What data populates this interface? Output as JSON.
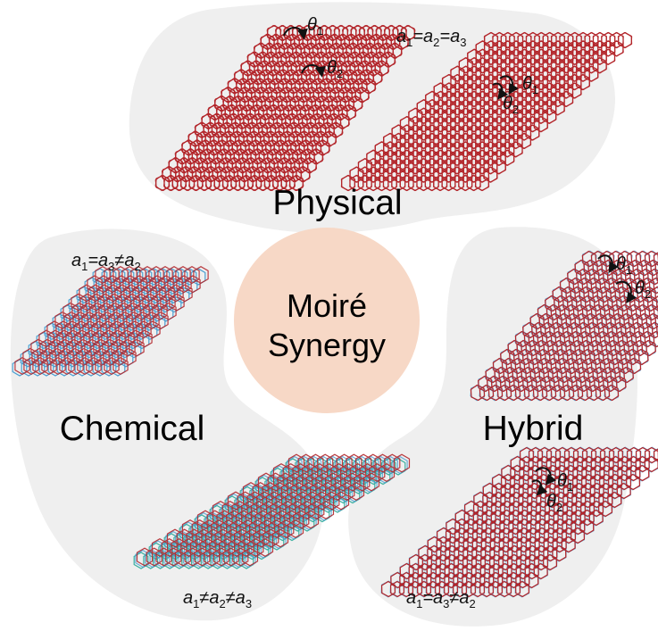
{
  "center": {
    "line1": "Moiré",
    "line2": "Synergy"
  },
  "regions": {
    "physical": {
      "label": "Physical",
      "lattice_relation": [
        "a",
        "1",
        "=a",
        "2",
        "=a",
        "3"
      ],
      "angles": [
        "θ",
        "1",
        "θ",
        "2"
      ]
    },
    "chemical": {
      "label": "Chemical",
      "lattice_relation_top": [
        "a",
        "1",
        "=a",
        "3",
        "≠a",
        "2"
      ],
      "lattice_relation_bottom": [
        "a",
        "1",
        "≠a",
        "2",
        "≠a",
        "3"
      ]
    },
    "hybrid": {
      "label": "Hybrid",
      "lattice_relation": [
        "a",
        "1",
        "=a",
        "3",
        "≠a",
        "2"
      ],
      "angles": [
        "θ",
        "1",
        "θ",
        "2"
      ]
    }
  },
  "colors": {
    "region_fill": "#efefef",
    "center_fill": "#f7d8c6",
    "lattice_red": "#b3262b",
    "lattice_blue": "#4a9fd1",
    "lattice_green": "#3bb0a0"
  }
}
